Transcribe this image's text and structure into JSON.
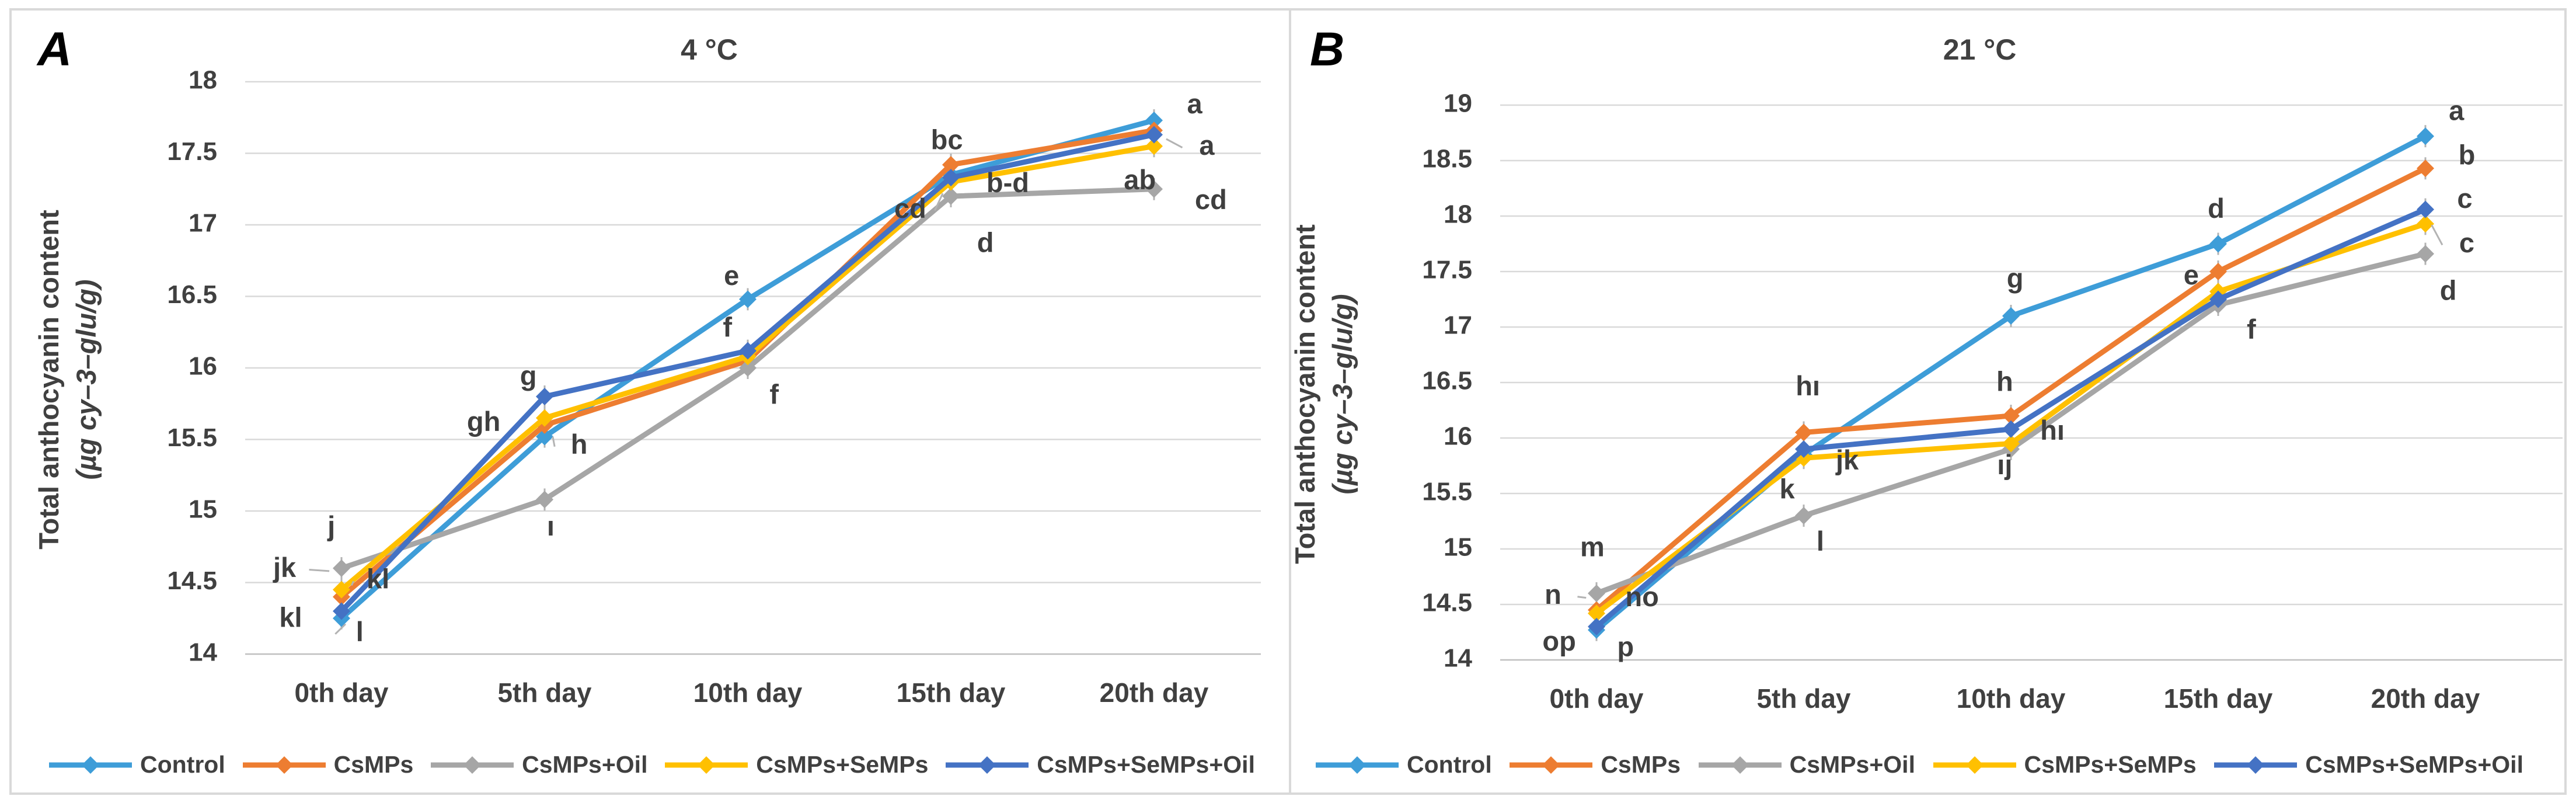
{
  "style": {
    "grid_color": "#d9d9d9",
    "axis_color": "#bfbfbf",
    "text_color": "#404040",
    "annotation_color": "#3f3f3f",
    "whisker_color": "#b3b3b3",
    "frame_color": "#d9d9d9"
  },
  "legend_labels": [
    "Control",
    "CsMPs",
    "CsMPs+Oil",
    "CsMPs+SeMPs",
    "CsMPs+SeMPs+Oil"
  ],
  "chart_data": [
    {
      "type": "line",
      "panel_letter": "A",
      "title": "4 °C",
      "xlabel": "",
      "ylabel": "Total anthocyanin content (µg cy–3–glu/g)",
      "ylabel_line1": "Total anthocyanin content",
      "ylabel_line2": "(µg cy–3–glu/g)",
      "ylim": [
        14,
        18
      ],
      "ytick_step": 0.5,
      "grid": true,
      "legend_position": "bottom",
      "marker": "diamond",
      "categories": [
        "0th day",
        "5th day",
        "10th day",
        "15th day",
        "20th day"
      ],
      "series": [
        {
          "name": "Control",
          "color": "#3e9dd8",
          "values": [
            14.25,
            15.52,
            16.48,
            17.35,
            17.73
          ]
        },
        {
          "name": "CsMPs",
          "color": "#ed7d31",
          "values": [
            14.4,
            15.6,
            16.05,
            17.42,
            17.66
          ]
        },
        {
          "name": "CsMPs+Oil",
          "color": "#a6a6a6",
          "values": [
            14.6,
            15.08,
            16.0,
            17.2,
            17.25
          ]
        },
        {
          "name": "CsMPs+SeMPs",
          "color": "#ffc000",
          "values": [
            14.45,
            15.65,
            16.08,
            17.3,
            17.55
          ]
        },
        {
          "name": "CsMPs+SeMPs+Oil",
          "color": "#4472c4",
          "values": [
            14.3,
            15.8,
            16.12,
            17.33,
            17.63
          ]
        }
      ],
      "annotations": [
        {
          "t": "j",
          "x": -0.05,
          "y": 14.88
        },
        {
          "t": "jk",
          "x": -0.28,
          "y": 14.59,
          "leader": [
            -0.06,
            14.58
          ]
        },
        {
          "t": "kl",
          "x": 0.18,
          "y": 14.51,
          "leader": [
            0.05,
            14.48
          ]
        },
        {
          "t": "kl",
          "x": -0.25,
          "y": 14.24
        },
        {
          "t": "l",
          "x": 0.09,
          "y": 14.14,
          "leader": [
            0.02,
            14.21
          ]
        },
        {
          "t": "g",
          "x": 0.92,
          "y": 15.93
        },
        {
          "t": "gh",
          "x": 0.7,
          "y": 15.61
        },
        {
          "t": "h",
          "x": 1.17,
          "y": 15.45,
          "leader": [
            1.04,
            15.52
          ]
        },
        {
          "t": "ı",
          "x": 1.03,
          "y": 14.88
        },
        {
          "t": "e",
          "x": 1.92,
          "y": 16.63
        },
        {
          "t": "f",
          "x": 1.9,
          "y": 16.27
        },
        {
          "t": "f",
          "x": 2.13,
          "y": 15.8
        },
        {
          "t": "bc",
          "x": 2.98,
          "y": 17.58
        },
        {
          "t": "cd",
          "x": 2.8,
          "y": 17.1,
          "leader": [
            2.96,
            17.22
          ]
        },
        {
          "t": "b-d",
          "x": 3.28,
          "y": 17.28
        },
        {
          "t": "d",
          "x": 3.17,
          "y": 16.86
        },
        {
          "t": "a",
          "x": 4.2,
          "y": 17.83
        },
        {
          "t": "a",
          "x": 4.26,
          "y": 17.54,
          "leader": [
            4.06,
            17.6
          ]
        },
        {
          "t": "ab",
          "x": 3.93,
          "y": 17.3
        },
        {
          "t": "cd",
          "x": 4.28,
          "y": 17.16
        }
      ]
    },
    {
      "type": "line",
      "panel_letter": "B",
      "title": "21 °C",
      "xlabel": "",
      "ylabel": "Total anthocyanin content (µg cy–3–glu/g)",
      "ylabel_line1": "Total anthocyanin content",
      "ylabel_line2": "(µg cy–3–glu/g)",
      "ylim": [
        14,
        19
      ],
      "ytick_step": 0.5,
      "grid": true,
      "legend_position": "bottom",
      "marker": "diamond",
      "categories": [
        "0th day",
        "5th day",
        "10th day",
        "15th day",
        "20th day"
      ],
      "series": [
        {
          "name": "Control",
          "color": "#3e9dd8",
          "values": [
            14.27,
            15.85,
            17.1,
            17.75,
            18.72
          ]
        },
        {
          "name": "CsMPs",
          "color": "#ed7d31",
          "values": [
            14.45,
            16.05,
            16.2,
            17.5,
            18.43
          ]
        },
        {
          "name": "CsMPs+Oil",
          "color": "#a6a6a6",
          "values": [
            14.6,
            15.3,
            15.9,
            17.2,
            17.66
          ]
        },
        {
          "name": "CsMPs+SeMPs",
          "color": "#ffc000",
          "values": [
            14.42,
            15.82,
            15.95,
            17.32,
            17.93
          ]
        },
        {
          "name": "CsMPs+SeMPs+Oil",
          "color": "#4472c4",
          "values": [
            14.3,
            15.9,
            16.08,
            17.25,
            18.06
          ]
        }
      ],
      "annotations": [
        {
          "t": "m",
          "x": -0.02,
          "y": 15.0
        },
        {
          "t": "n",
          "x": -0.21,
          "y": 14.57,
          "leader": [
            -0.05,
            14.56
          ]
        },
        {
          "t": "no",
          "x": 0.22,
          "y": 14.55
        },
        {
          "t": "op",
          "x": -0.18,
          "y": 14.15
        },
        {
          "t": "p",
          "x": 0.14,
          "y": 14.1
        },
        {
          "t": "hı",
          "x": 1.02,
          "y": 16.45
        },
        {
          "t": "k",
          "x": 0.92,
          "y": 15.52
        },
        {
          "t": "jk",
          "x": 1.21,
          "y": 15.78
        },
        {
          "t": "l",
          "x": 1.08,
          "y": 15.05
        },
        {
          "t": "g",
          "x": 2.02,
          "y": 17.42
        },
        {
          "t": "h",
          "x": 1.97,
          "y": 16.49
        },
        {
          "t": "hı",
          "x": 2.2,
          "y": 16.05
        },
        {
          "t": "ıj",
          "x": 1.97,
          "y": 15.74
        },
        {
          "t": "d",
          "x": 2.99,
          "y": 18.05
        },
        {
          "t": "e",
          "x": 2.87,
          "y": 17.45
        },
        {
          "t": "f",
          "x": 3.16,
          "y": 16.96
        },
        {
          "t": "a",
          "x": 4.15,
          "y": 18.93
        },
        {
          "t": "b",
          "x": 4.2,
          "y": 18.53
        },
        {
          "t": "c",
          "x": 4.19,
          "y": 18.14
        },
        {
          "t": "c",
          "x": 4.2,
          "y": 17.74,
          "leader": [
            4.03,
            17.92
          ]
        },
        {
          "t": "d",
          "x": 4.11,
          "y": 17.31
        }
      ]
    }
  ]
}
